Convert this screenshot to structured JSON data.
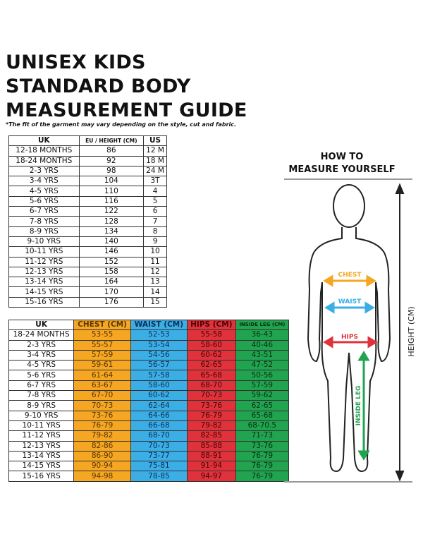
{
  "title": [
    "UNISEX KIDS",
    "STANDARD BODY",
    "MEASUREMENT GUIDE"
  ],
  "note": "*The fit of the garment may vary depending on the style, cut and fabric.",
  "size_table": {
    "headers": [
      "UK",
      "EU / HEIGHT (CM)",
      "US"
    ],
    "rows": [
      [
        "12-18 MONTHS",
        "86",
        "12 M"
      ],
      [
        "18-24 MONTHS",
        "92",
        "18 M"
      ],
      [
        "2-3 YRS",
        "98",
        "24 M"
      ],
      [
        "3-4 YRS",
        "104",
        "3T"
      ],
      [
        "4-5 YRS",
        "110",
        "4"
      ],
      [
        "5-6 YRS",
        "116",
        "5"
      ],
      [
        "6-7 YRS",
        "122",
        "6"
      ],
      [
        "7-8 YRS",
        "128",
        "7"
      ],
      [
        "8-9 YRS",
        "134",
        "8"
      ],
      [
        "9-10 YRS",
        "140",
        "9"
      ],
      [
        "10-11 YRS",
        "146",
        "10"
      ],
      [
        "11-12 YRS",
        "152",
        "11"
      ],
      [
        "12-13 YRS",
        "158",
        "12"
      ],
      [
        "13-14 YRS",
        "164",
        "13"
      ],
      [
        "14-15 YRS",
        "170",
        "14"
      ],
      [
        "15-16 YRS",
        "176",
        "15"
      ]
    ]
  },
  "measure_table": {
    "headers": [
      "UK",
      "CHEST (CM)",
      "WAIST (CM)",
      "HIPS (CM)",
      "INSIDE LEG (CM)"
    ],
    "rows": [
      [
        "18-24 MONTHS",
        "53-55",
        "52-53",
        "55-58",
        "36-43"
      ],
      [
        "2-3 YRS",
        "55-57",
        "53-54",
        "58-60",
        "40-46"
      ],
      [
        "3-4 YRS",
        "57-59",
        "54-56",
        "60-62",
        "43-51"
      ],
      [
        "4-5 YRS",
        "59-61",
        "56-57",
        "62-65",
        "47-52"
      ],
      [
        "5-6 YRS",
        "61-64",
        "57-58",
        "65-68",
        "50-56"
      ],
      [
        "6-7 YRS",
        "63-67",
        "58-60",
        "68-70",
        "57-59"
      ],
      [
        "7-8 YRS",
        "67-70",
        "60-62",
        "70-73",
        "59-62"
      ],
      [
        "8-9 YRS",
        "70-73",
        "62-64",
        "73-76",
        "62-65"
      ],
      [
        "9-10 YRS",
        "73-76",
        "64-66",
        "76-79",
        "65-68"
      ],
      [
        "10-11 YRS",
        "76-79",
        "66-68",
        "79-82",
        "68-70.5"
      ],
      [
        "11-12 YRS",
        "79-82",
        "68-70",
        "82-85",
        "71-73"
      ],
      [
        "12-13 YRS",
        "82-86",
        "70-73",
        "85-88",
        "73-76"
      ],
      [
        "13-14 YRS",
        "86-90",
        "73-77",
        "88-91",
        "76-79"
      ],
      [
        "14-15 YRS",
        "90-94",
        "75-81",
        "91-94",
        "76-79"
      ],
      [
        "15-16 YRS",
        "94-98",
        "78-85",
        "94-97",
        "76-79"
      ]
    ]
  },
  "howto": {
    "line1": "HOW TO",
    "line2": "MEASURE YOURSELF"
  },
  "figure": {
    "chest": "CHEST",
    "waist": "WAIST",
    "hips": "HIPS",
    "inside_leg": "INSIDE LEG",
    "height": "HEIGHT (CM)"
  },
  "colors": {
    "chest": "#f5a623",
    "waist": "#3aaee5",
    "hips": "#e0323a",
    "inside_leg": "#21a350"
  }
}
